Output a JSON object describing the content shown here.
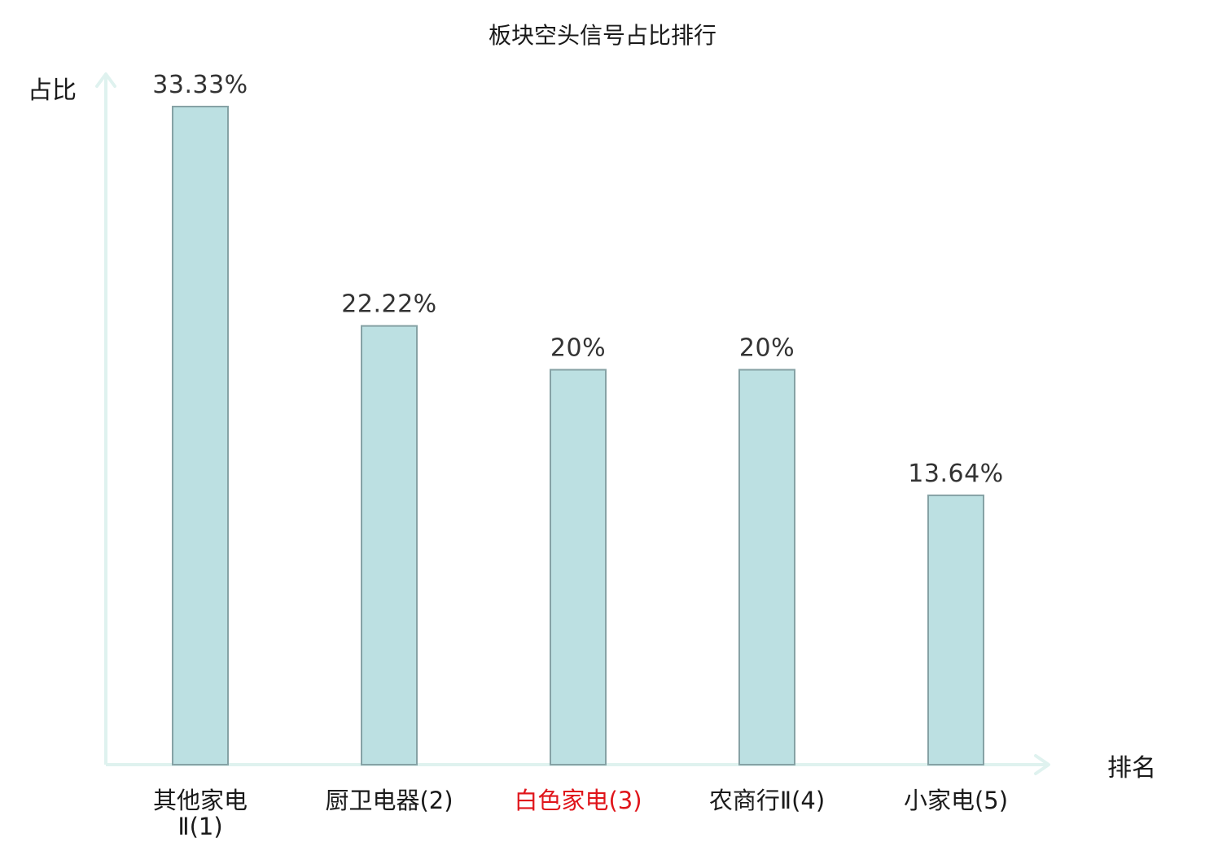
{
  "chart_data": {
    "type": "bar",
    "title": "板块空头信号占比排行",
    "xlabel": "排名",
    "ylabel": "占比",
    "categories": [
      {
        "lines": [
          "其他家电",
          "Ⅱ(1)"
        ],
        "highlight": false
      },
      {
        "lines": [
          "厨卫电器(2)"
        ],
        "highlight": false
      },
      {
        "lines": [
          "白色家电(3)"
        ],
        "highlight": true
      },
      {
        "lines": [
          "农商行Ⅱ(4)"
        ],
        "highlight": false
      },
      {
        "lines": [
          "小家电(5)"
        ],
        "highlight": false
      }
    ],
    "values": [
      33.33,
      22.22,
      20,
      20,
      13.64
    ],
    "data_labels": [
      "33.33%",
      "22.22%",
      "20%",
      "20%",
      "13.64%"
    ],
    "ylim": [
      0,
      33.33
    ],
    "grid": false,
    "colors": {
      "bar_fill": "#bce0e2",
      "bar_stroke": "#86a2a5",
      "axis": "#dff2ef",
      "highlight_text": "#e0151b",
      "text": "#1a1a1a"
    }
  }
}
